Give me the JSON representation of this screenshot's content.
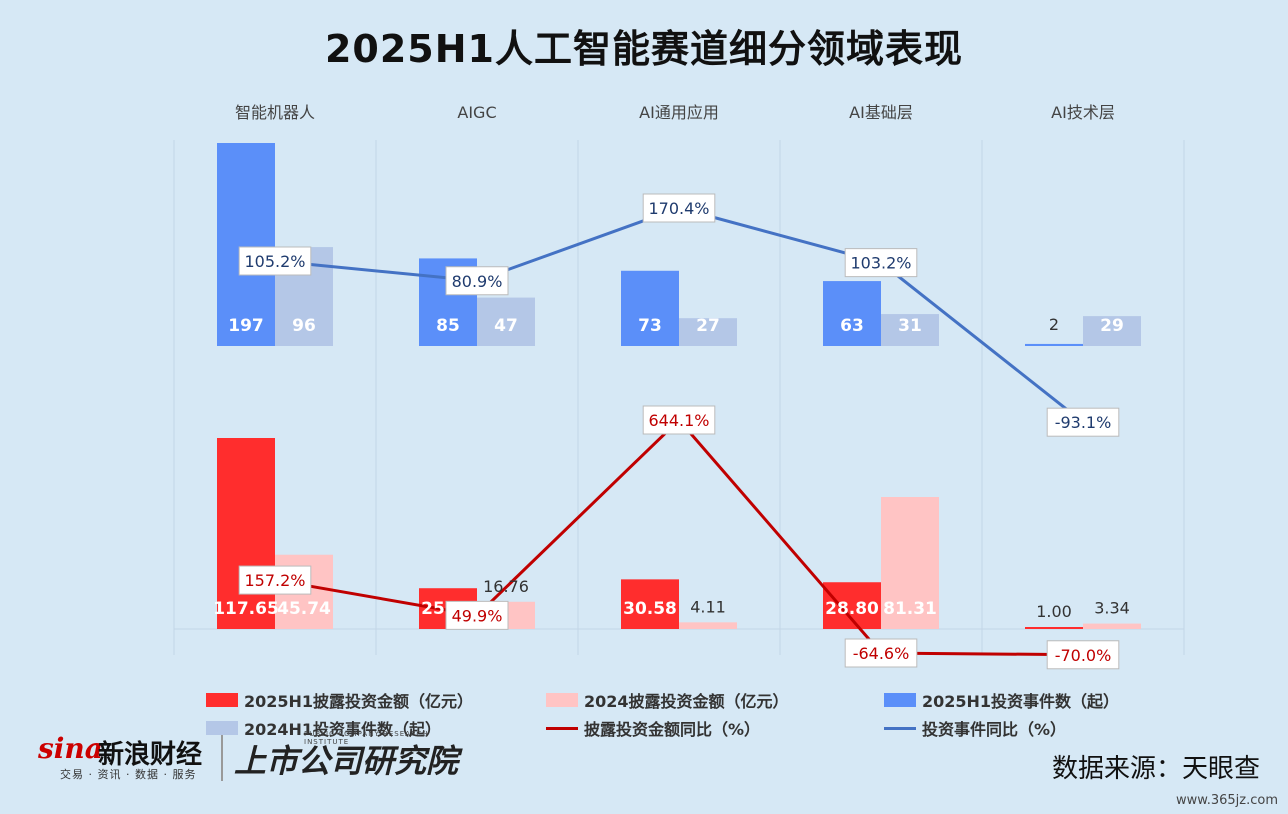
{
  "title": "2025H1人工智能赛道细分领域表现",
  "chart_data": {
    "type": "bar",
    "categories": [
      "智能机器人",
      "AIGC",
      "AI通用应用",
      "AI基础层",
      "AI技术层"
    ],
    "upper": {
      "series": [
        {
          "name": "2025H1投资事件数（起）",
          "values": [
            197,
            85,
            73,
            63,
            2
          ],
          "labels": [
            "197",
            "85",
            "73",
            "63",
            "2"
          ],
          "color": "#5b8ff9"
        },
        {
          "name": "2024H1投资事件数（起）",
          "values": [
            96,
            47,
            27,
            31,
            29
          ],
          "labels": [
            "96",
            "47",
            "27",
            "31",
            "29"
          ],
          "color": "#b4c7e7"
        }
      ],
      "line": {
        "name": "投资事件同比（%）",
        "values": [
          105.2,
          80.9,
          170.4,
          103.2,
          -93.1
        ],
        "labels": [
          "105.2%",
          "80.9%",
          "170.4%",
          "103.2%",
          "-93.1%"
        ],
        "color": "#4472c4"
      }
    },
    "lower": {
      "series": [
        {
          "name": "2025H1披露投资金额（亿元）",
          "values": [
            117.65,
            25.12,
            30.58,
            28.8,
            1.0
          ],
          "labels": [
            "117.65",
            "25.12",
            "30.58",
            "28.80",
            "1.00"
          ],
          "color": "#ff2d2d"
        },
        {
          "name": "2024披露投资金额（亿元）",
          "values": [
            45.74,
            16.76,
            4.11,
            81.31,
            3.34
          ],
          "labels": [
            "45.74",
            "16.76",
            "4.11",
            "81.31",
            "3.34"
          ],
          "color": "#ffc4c4"
        }
      ],
      "line": {
        "name": "披露投资金额同比（%）",
        "values": [
          157.2,
          49.9,
          644.1,
          -64.6,
          -70.0
        ],
        "labels": [
          "157.2%",
          "49.9%",
          "644.1%",
          "-64.6%",
          "-70.0%"
        ],
        "color": "#c00000"
      }
    },
    "legend_position": "bottom",
    "grid": false
  },
  "legend": [
    {
      "label": "2025H1披露投资金额（亿元）",
      "kind": "box",
      "color": "#ff2d2d"
    },
    {
      "label": "2024披露投资金额（亿元）",
      "kind": "box",
      "color": "#ffc4c4"
    },
    {
      "label": "2025H1投资事件数（起）",
      "kind": "box",
      "color": "#5b8ff9"
    },
    {
      "label": "2024H1投资事件数（起）",
      "kind": "box",
      "color": "#b4c7e7"
    },
    {
      "label": "披露投资金额同比（%）",
      "kind": "line",
      "color": "#c00000"
    },
    {
      "label": "投资事件同比（%）",
      "kind": "line",
      "color": "#4472c4"
    }
  ],
  "source": "数据来源：天眼查",
  "logos": {
    "sina_word": "sina",
    "sina_cn": "新浪财经",
    "sina_sub": "交易 · 资讯 · 数据 · 服务",
    "institute_cn": "上市公司研究院",
    "institute_en": "PUBLIC COMPANY RESEARCH INSTITUTE"
  },
  "watermark": "www.365jz.com"
}
